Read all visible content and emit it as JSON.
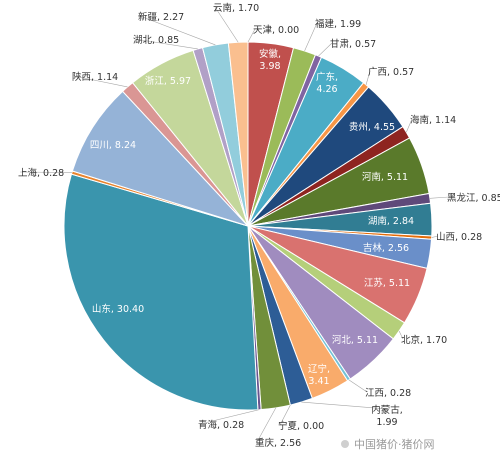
{
  "chart_data": {
    "type": "pie",
    "title": "",
    "legend": "none",
    "slices": [
      {
        "label": "安徽",
        "value": 3.98,
        "color": "#c0504d",
        "text": "安徽,\n3.98",
        "inside": true
      },
      {
        "label": "福建",
        "value": 1.99,
        "color": "#9bbb59",
        "text": "福建, 1.99",
        "inside": false
      },
      {
        "label": "甘肃",
        "value": 0.57,
        "color": "#8064a2",
        "text": "甘肃, 0.57",
        "inside": false
      },
      {
        "label": "广东",
        "value": 4.26,
        "color": "#4bacc6",
        "text": "广东,\n4.26",
        "inside": true
      },
      {
        "label": "广西",
        "value": 0.57,
        "color": "#f79646",
        "text": "广西, 0.57",
        "inside": false
      },
      {
        "label": "贵州",
        "value": 4.55,
        "color": "#1f497d",
        "text": "贵州, 4.55",
        "inside": true
      },
      {
        "label": "海南",
        "value": 1.14,
        "color": "#8e2420",
        "text": "海南, 1.14",
        "inside": false
      },
      {
        "label": "河南",
        "value": 5.11,
        "color": "#5a7a2b",
        "text": "河南, 5.11",
        "inside": true
      },
      {
        "label": "黑龙江",
        "value": 0.85,
        "color": "#5f497a",
        "text": "黑龙江, 0.85",
        "inside": false
      },
      {
        "label": "湖南",
        "value": 2.84,
        "color": "#317d93",
        "text": "湖南, 2.84",
        "inside": true
      },
      {
        "label": "山西",
        "value": 0.28,
        "color": "#e46c0a",
        "text": "山西, 0.28",
        "inside": false
      },
      {
        "label": "吉林",
        "value": 2.56,
        "color": "#6a8fc9",
        "text": "吉林, 2.56",
        "inside": true
      },
      {
        "label": "江苏",
        "value": 5.11,
        "color": "#d9726f",
        "text": "江苏, 5.11",
        "inside": true
      },
      {
        "label": "北京",
        "value": 1.7,
        "color": "#b5cf7a",
        "text": "北京, 1.70",
        "inside": false
      },
      {
        "label": "河北",
        "value": 5.11,
        "color": "#a08cbf",
        "text": "河北, 5.11",
        "inside": true
      },
      {
        "label": "江西",
        "value": 0.28,
        "color": "#74c2d6",
        "text": "江西, 0.28",
        "inside": false
      },
      {
        "label": "辽宁",
        "value": 3.41,
        "color": "#f9ab6b",
        "text": "辽宁,\n3.41",
        "inside": true
      },
      {
        "label": "内蒙古",
        "value": 1.99,
        "color": "#2d5d96",
        "text": "内蒙古,\n1.99",
        "inside": false
      },
      {
        "label": "宁夏",
        "value": 0.0,
        "color": "#a33430",
        "text": "宁夏, 0.00",
        "inside": false
      },
      {
        "label": "重庆",
        "value": 2.56,
        "color": "#718f3a",
        "text": "重庆, 2.56",
        "inside": false
      },
      {
        "label": "青海",
        "value": 0.28,
        "color": "#6a5590",
        "text": "青海, 0.28",
        "inside": false
      },
      {
        "label": "山东",
        "value": 30.4,
        "color": "#3a95ad",
        "text": "山东, 30.40",
        "inside": true
      },
      {
        "label": "上海",
        "value": 0.28,
        "color": "#e8842e",
        "text": "上海, 0.28",
        "inside": false
      },
      {
        "label": "四川",
        "value": 8.24,
        "color": "#95b3d7",
        "text": "四川, 8.24",
        "inside": true
      },
      {
        "label": "陕西",
        "value": 1.14,
        "color": "#da9694",
        "text": "陕西, 1.14",
        "inside": false
      },
      {
        "label": "浙江",
        "value": 5.97,
        "color": "#c4d79b",
        "text": "浙江, 5.97",
        "inside": true
      },
      {
        "label": "湖北",
        "value": 0.85,
        "color": "#b1a0c7",
        "text": "湖北, 0.85",
        "inside": false
      },
      {
        "label": "新疆",
        "value": 2.27,
        "color": "#92cddc",
        "text": "新疆, 2.27",
        "inside": false
      },
      {
        "label": "云南",
        "value": 1.7,
        "color": "#fabf8f",
        "text": "云南, 1.70",
        "inside": false
      },
      {
        "label": "天津",
        "value": 0.0,
        "color": "#943634",
        "text": "天津, 0.00",
        "inside": false
      }
    ]
  },
  "watermark": "中国猪价·猪价网"
}
